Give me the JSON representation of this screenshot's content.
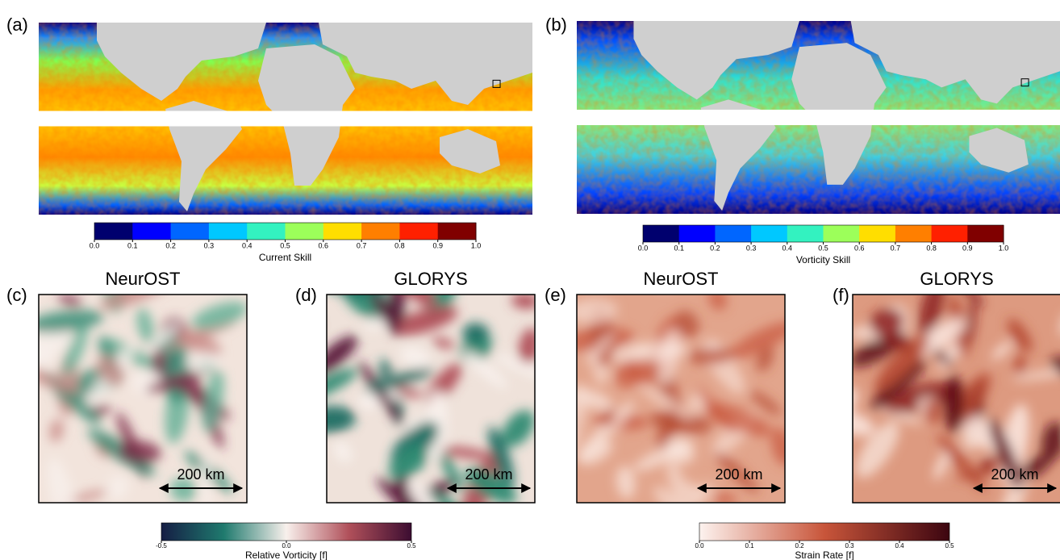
{
  "maps": [
    {
      "label": "(a)",
      "colorbar": {
        "ticks": [
          "0.0",
          "0.1",
          "0.2",
          "0.3",
          "0.4",
          "0.5",
          "0.6",
          "0.7",
          "0.8",
          "0.9",
          "1.0"
        ],
        "label": "Current Skill"
      }
    },
    {
      "label": "(b)",
      "colorbar": {
        "ticks": [
          "0.0",
          "0.1",
          "0.2",
          "0.3",
          "0.4",
          "0.5",
          "0.6",
          "0.7",
          "0.8",
          "0.9",
          "1.0"
        ],
        "label": "Vorticity Skill"
      }
    }
  ],
  "panels": [
    {
      "label": "(c)",
      "title": "NeurOST",
      "scale": "200 km"
    },
    {
      "label": "(d)",
      "title": "GLORYS",
      "scale": "200 km"
    },
    {
      "label": "(e)",
      "title": "NeurOST",
      "scale": "200 km"
    },
    {
      "label": "(f)",
      "title": "GLORYS",
      "scale": "200 km"
    }
  ],
  "colorbars": [
    {
      "ticks": [
        "-0.5",
        "0.0",
        "0.5"
      ],
      "label": "Relative Vorticity [f]"
    },
    {
      "ticks": [
        "0.0",
        "0.1",
        "0.2",
        "0.3",
        "0.4",
        "0.5"
      ],
      "label": "Strain Rate [f]"
    }
  ]
}
